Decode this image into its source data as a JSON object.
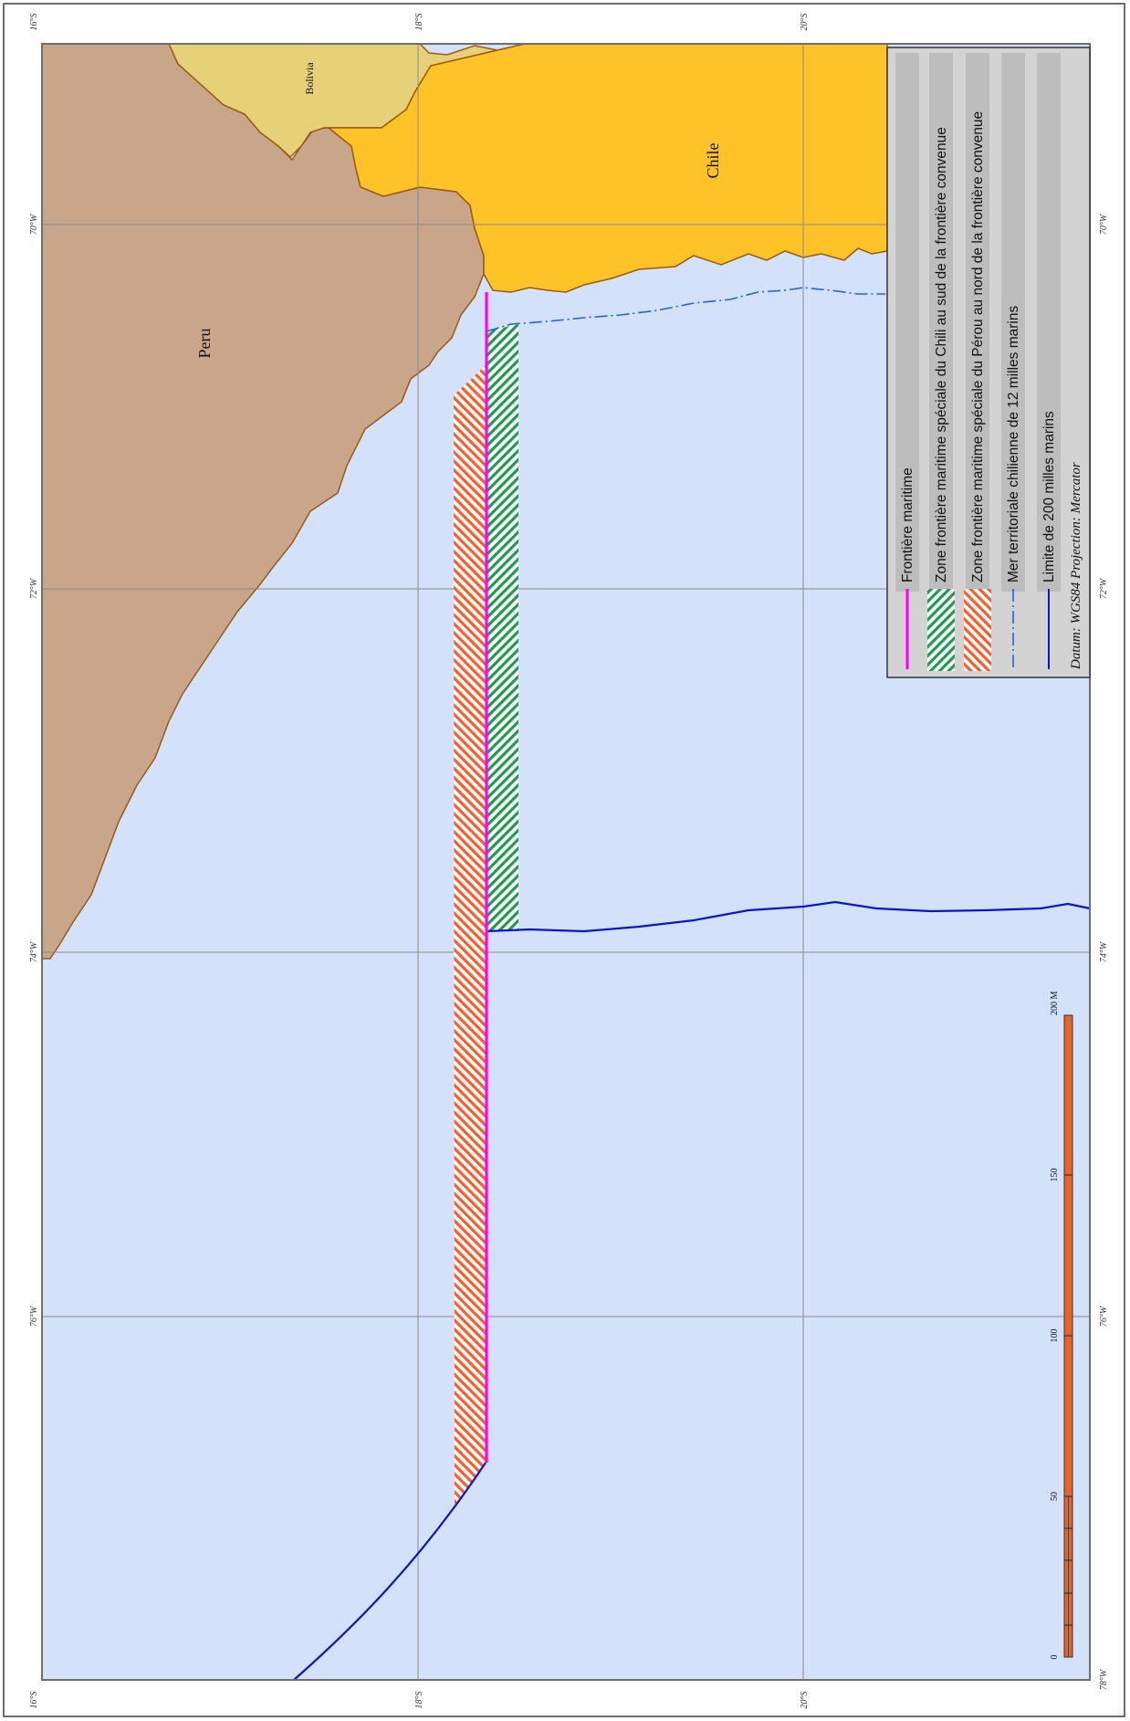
{
  "map": {
    "colors": {
      "sea": "#d4e1fa",
      "peru": "#c9a58a",
      "chile": "#ffc328",
      "bolivia": "#e6d178",
      "border": "#9a5a10",
      "maritime_boundary": "#ff00ff",
      "chile_zone_hatch": "#1f9b4b",
      "peru_zone_hatch": "#ff5a28",
      "territorial_sea_line": "#1f64e6",
      "limit_200nm": "#0a14d2",
      "grid": "#8a8a8a",
      "legend_bg": "#d3d3d3",
      "legend_row_bg": "#bdbdbd",
      "scale_fill": "#e8632a"
    },
    "countries": {
      "peru": "Peru",
      "chile": "Chile",
      "bolivia": "Bolivia"
    },
    "grid_labels": {
      "lat": [
        "16°S",
        "18°S",
        "20°S"
      ],
      "lon": [
        "70°W",
        "72°W",
        "74°W",
        "76°W",
        "78°W"
      ]
    },
    "legend": {
      "items": [
        {
          "label": "Frontière maritime",
          "icon": "magenta-line-icon"
        },
        {
          "label": "Zone frontière maritime spéciale du Chili au sud de la frontière convenue",
          "icon": "green-hatch-icon"
        },
        {
          "label": "Zone frontière maritime spéciale du Pérou au nord de la frontière convenue",
          "icon": "orange-hatch-icon"
        },
        {
          "label": "Mer territoriale chilienne de 12 milles marins",
          "icon": "dash-dot-line-icon"
        },
        {
          "label": "Limite de 200 milles marins",
          "icon": "blue-line-icon"
        }
      ],
      "datum": "Datum:  WGS84    Projection:  Mercator"
    },
    "scale_bar": {
      "labels": [
        "0",
        "50",
        "100",
        "150",
        "200 M"
      ]
    }
  }
}
